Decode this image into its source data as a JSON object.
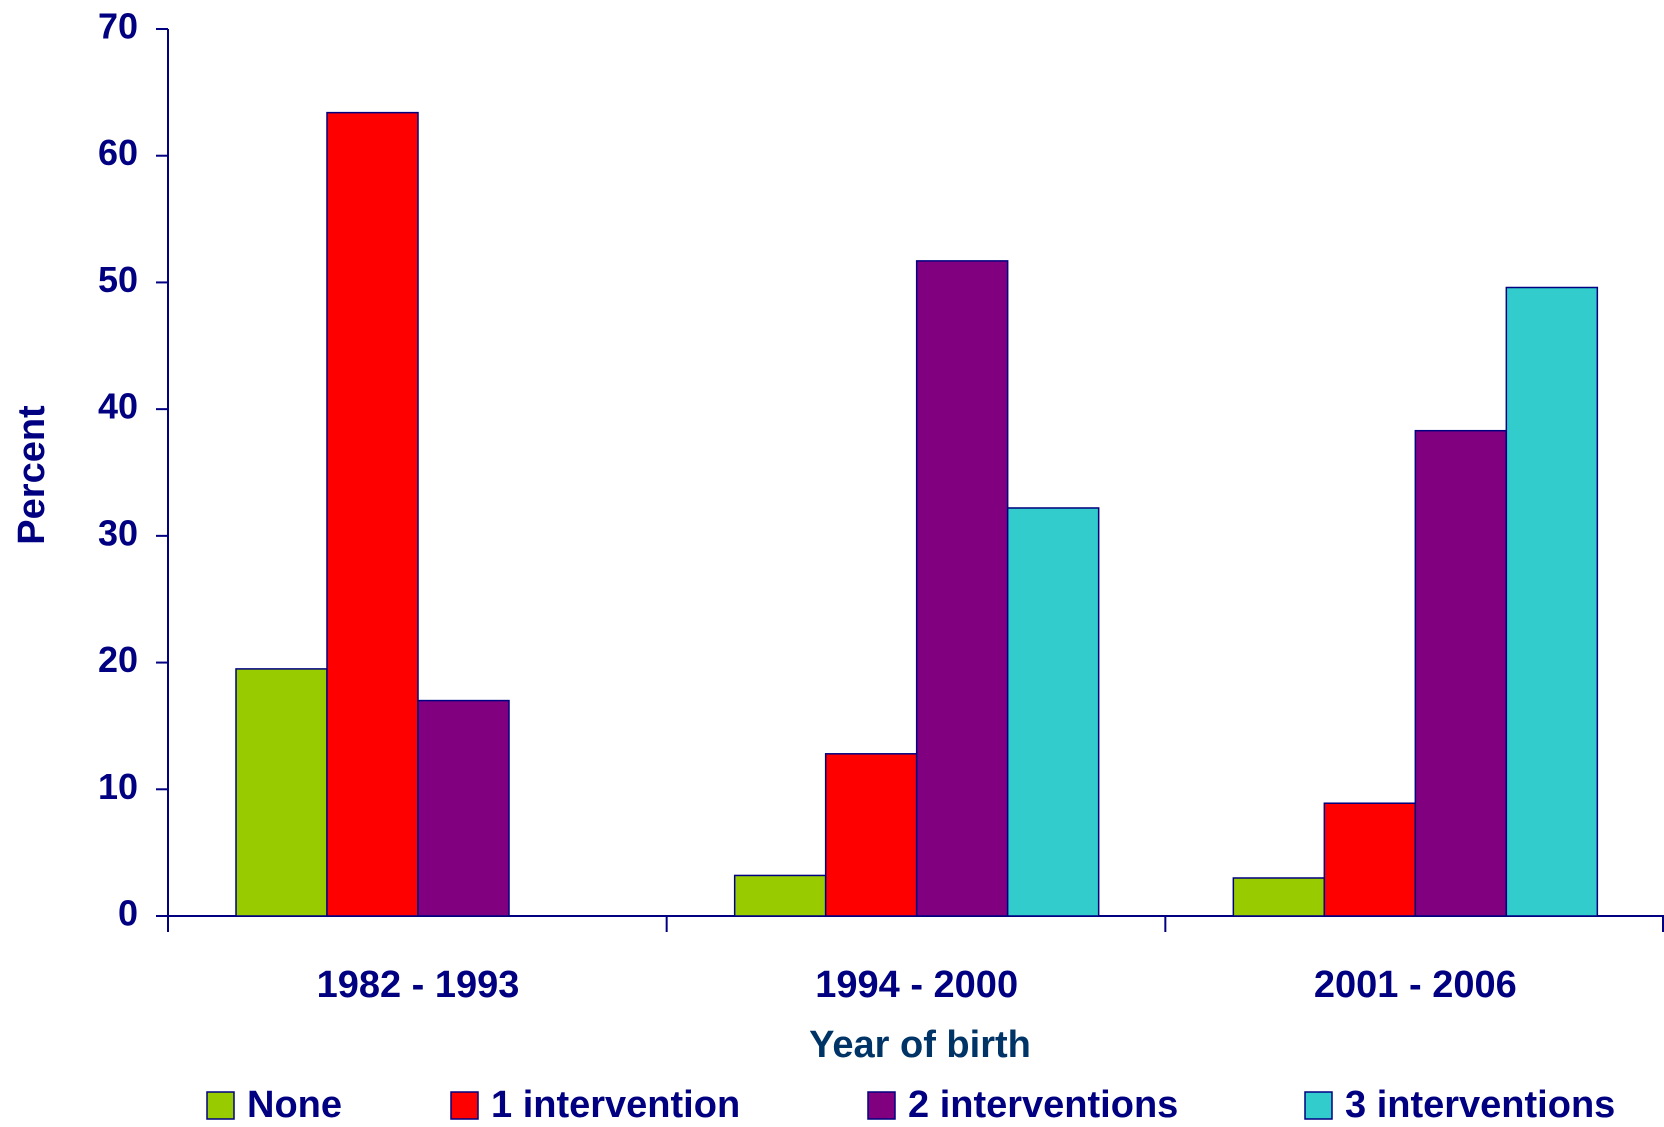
{
  "chart_data": {
    "type": "bar",
    "categories": [
      "1982 - 1993",
      "1994 - 2000",
      "2001 - 2006"
    ],
    "series": [
      {
        "name": "None",
        "color": "#99cc00",
        "values": [
          19.5,
          3.2,
          3.0
        ]
      },
      {
        "name": "1 intervention",
        "color": "#ff0000",
        "values": [
          63.4,
          12.8,
          8.9
        ]
      },
      {
        "name": "2 interventions",
        "color": "#800080",
        "values": [
          17.0,
          51.7,
          38.3
        ]
      },
      {
        "name": "3 interventions",
        "color": "#33cccc",
        "values": [
          null,
          32.2,
          49.6
        ]
      }
    ],
    "x_label": "Year of birth",
    "y_label": "Percent",
    "ylim": [
      0,
      70
    ],
    "yticks": [
      0,
      10,
      20,
      30,
      40,
      50,
      60,
      70
    ],
    "legend": "bottom"
  }
}
